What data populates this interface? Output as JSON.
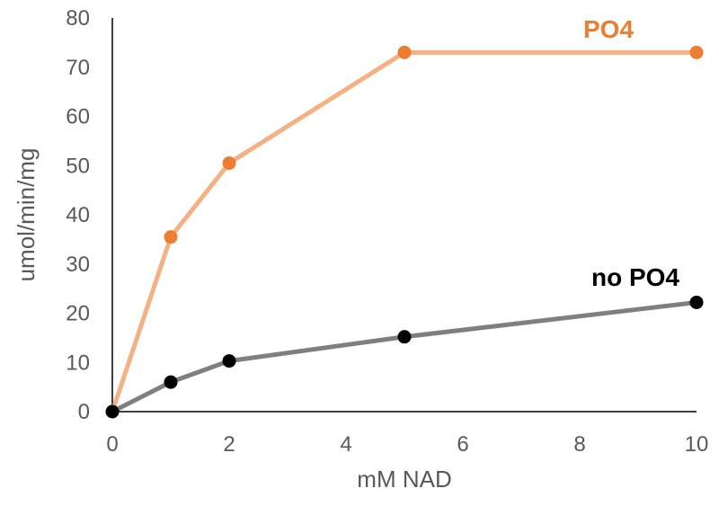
{
  "chart_data": {
    "type": "line",
    "title": "",
    "xlabel": "mM NAD",
    "ylabel": "umol/min/mg",
    "xlim": [
      0,
      10
    ],
    "ylim": [
      0,
      80
    ],
    "x_ticks": [
      0,
      2,
      4,
      6,
      8,
      10
    ],
    "y_ticks": [
      0,
      10,
      20,
      30,
      40,
      50,
      60,
      70,
      80
    ],
    "grid": false,
    "legend": "inline labels",
    "series": [
      {
        "name": "PO4",
        "x": [
          0,
          1,
          2,
          5,
          10
        ],
        "y": [
          0,
          35.5,
          50.5,
          73,
          73
        ],
        "line_color": "#f4b183",
        "marker_color": "#ed7d31",
        "label_color": "#ed7d31"
      },
      {
        "name": "no PO4",
        "x": [
          0,
          1,
          2,
          5,
          10
        ],
        "y": [
          0,
          6,
          10.3,
          15.2,
          22.2
        ],
        "line_color": "#7f7f7f",
        "marker_color": "#000000",
        "label_color": "#000000"
      }
    ]
  }
}
